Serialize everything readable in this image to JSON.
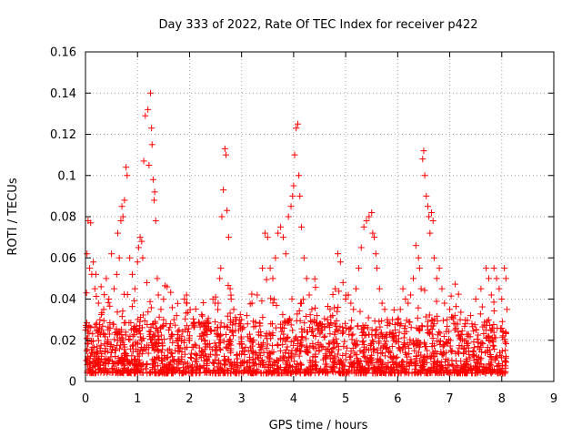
{
  "chart_data": {
    "type": "scatter",
    "title": "Day 333 of 2022, Rate Of TEC Index for receiver p422",
    "xlabel": "GPS time / hours",
    "ylabel": "ROTI / TECUs",
    "xlim": [
      0,
      9
    ],
    "ylim": [
      0,
      0.16
    ],
    "xticks": [
      "0",
      "1",
      "2",
      "3",
      "4",
      "5",
      "6",
      "7",
      "8",
      "9"
    ],
    "yticks": [
      "0",
      "0.02",
      "0.04",
      "0.06",
      "0.08",
      "0.1",
      "0.12",
      "0.14",
      "0.16"
    ],
    "grid": true,
    "marker": "plus",
    "color": "#ff0000",
    "data_extent_x": [
      0,
      8.1
    ],
    "series": [
      {
        "points": [
          [
            0.0,
            0.025
          ],
          [
            0.02,
            0.043
          ],
          [
            0.03,
            0.062
          ],
          [
            0.05,
            0.078
          ],
          [
            0.08,
            0.055
          ],
          [
            0.1,
            0.077
          ],
          [
            0.12,
            0.052
          ],
          [
            0.15,
            0.058
          ],
          [
            0.18,
            0.045
          ],
          [
            0.2,
            0.052
          ],
          [
            0.25,
            0.038
          ],
          [
            0.3,
            0.046
          ],
          [
            0.35,
            0.035
          ],
          [
            0.4,
            0.05
          ],
          [
            0.45,
            0.04
          ],
          [
            0.5,
            0.062
          ],
          [
            0.55,
            0.045
          ],
          [
            0.6,
            0.052
          ],
          [
            0.62,
            0.072
          ],
          [
            0.65,
            0.06
          ],
          [
            0.68,
            0.078
          ],
          [
            0.7,
            0.085
          ],
          [
            0.72,
            0.08
          ],
          [
            0.75,
            0.088
          ],
          [
            0.78,
            0.104
          ],
          [
            0.8,
            0.1
          ],
          [
            0.85,
            0.06
          ],
          [
            0.9,
            0.052
          ],
          [
            0.95,
            0.045
          ],
          [
            1.0,
            0.058
          ],
          [
            1.02,
            0.065
          ],
          [
            1.05,
            0.07
          ],
          [
            1.08,
            0.068
          ],
          [
            1.1,
            0.06
          ],
          [
            1.12,
            0.107
          ],
          [
            1.15,
            0.129
          ],
          [
            1.18,
            0.048
          ],
          [
            1.2,
            0.132
          ],
          [
            1.22,
            0.105
          ],
          [
            1.25,
            0.14
          ],
          [
            1.27,
            0.123
          ],
          [
            1.28,
            0.115
          ],
          [
            1.3,
            0.098
          ],
          [
            1.32,
            0.088
          ],
          [
            1.33,
            0.092
          ],
          [
            1.35,
            0.078
          ],
          [
            1.38,
            0.05
          ],
          [
            1.4,
            0.042
          ],
          [
            1.45,
            0.035
          ],
          [
            1.5,
            0.03
          ],
          [
            1.55,
            0.028
          ],
          [
            1.6,
            0.025
          ],
          [
            1.65,
            0.022
          ],
          [
            1.7,
            0.03
          ],
          [
            1.75,
            0.032
          ],
          [
            1.8,
            0.025
          ],
          [
            1.85,
            0.022
          ],
          [
            1.9,
            0.04
          ],
          [
            1.95,
            0.038
          ],
          [
            2.0,
            0.02
          ],
          [
            2.1,
            0.018
          ],
          [
            2.2,
            0.022
          ],
          [
            2.3,
            0.02
          ],
          [
            2.4,
            0.025
          ],
          [
            2.45,
            0.04
          ],
          [
            2.5,
            0.041
          ],
          [
            2.55,
            0.038
          ],
          [
            2.58,
            0.05
          ],
          [
            2.6,
            0.055
          ],
          [
            2.62,
            0.08
          ],
          [
            2.65,
            0.093
          ],
          [
            2.68,
            0.113
          ],
          [
            2.7,
            0.11
          ],
          [
            2.72,
            0.083
          ],
          [
            2.75,
            0.07
          ],
          [
            2.78,
            0.045
          ],
          [
            2.8,
            0.04
          ],
          [
            2.85,
            0.035
          ],
          [
            2.9,
            0.03
          ],
          [
            2.95,
            0.028
          ],
          [
            3.0,
            0.03
          ],
          [
            3.1,
            0.032
          ],
          [
            3.2,
            0.038
          ],
          [
            3.3,
            0.042
          ],
          [
            3.4,
            0.055
          ],
          [
            3.45,
            0.072
          ],
          [
            3.5,
            0.07
          ],
          [
            3.55,
            0.055
          ],
          [
            3.6,
            0.05
          ],
          [
            3.65,
            0.06
          ],
          [
            3.7,
            0.072
          ],
          [
            3.75,
            0.075
          ],
          [
            3.8,
            0.07
          ],
          [
            3.85,
            0.062
          ],
          [
            3.9,
            0.08
          ],
          [
            3.95,
            0.085
          ],
          [
            3.98,
            0.09
          ],
          [
            4.0,
            0.095
          ],
          [
            4.02,
            0.11
          ],
          [
            4.05,
            0.123
          ],
          [
            4.08,
            0.125
          ],
          [
            4.1,
            0.1
          ],
          [
            4.12,
            0.09
          ],
          [
            4.15,
            0.075
          ],
          [
            4.2,
            0.06
          ],
          [
            4.25,
            0.05
          ],
          [
            4.3,
            0.042
          ],
          [
            4.35,
            0.035
          ],
          [
            4.4,
            0.03
          ],
          [
            4.45,
            0.032
          ],
          [
            4.5,
            0.028
          ],
          [
            4.55,
            0.025
          ],
          [
            4.6,
            0.022
          ],
          [
            4.65,
            0.03
          ],
          [
            4.7,
            0.035
          ],
          [
            4.75,
            0.032
          ],
          [
            4.8,
            0.045
          ],
          [
            4.85,
            0.062
          ],
          [
            4.9,
            0.058
          ],
          [
            4.95,
            0.048
          ],
          [
            5.0,
            0.04
          ],
          [
            5.05,
            0.042
          ],
          [
            5.1,
            0.038
          ],
          [
            5.15,
            0.035
          ],
          [
            5.2,
            0.045
          ],
          [
            5.25,
            0.055
          ],
          [
            5.3,
            0.065
          ],
          [
            5.35,
            0.075
          ],
          [
            5.4,
            0.078
          ],
          [
            5.45,
            0.08
          ],
          [
            5.5,
            0.082
          ],
          [
            5.52,
            0.072
          ],
          [
            5.55,
            0.07
          ],
          [
            5.58,
            0.062
          ],
          [
            5.6,
            0.055
          ],
          [
            5.65,
            0.045
          ],
          [
            5.7,
            0.038
          ],
          [
            5.75,
            0.035
          ],
          [
            5.8,
            0.03
          ],
          [
            5.85,
            0.028
          ],
          [
            5.9,
            0.03
          ],
          [
            5.95,
            0.025
          ],
          [
            6.0,
            0.03
          ],
          [
            6.05,
            0.035
          ],
          [
            6.1,
            0.045
          ],
          [
            6.15,
            0.04
          ],
          [
            6.2,
            0.038
          ],
          [
            6.25,
            0.042
          ],
          [
            6.3,
            0.05
          ],
          [
            6.35,
            0.066
          ],
          [
            6.4,
            0.06
          ],
          [
            6.42,
            0.055
          ],
          [
            6.45,
            0.045
          ],
          [
            6.48,
            0.108
          ],
          [
            6.5,
            0.112
          ],
          [
            6.52,
            0.1
          ],
          [
            6.55,
            0.09
          ],
          [
            6.58,
            0.085
          ],
          [
            6.6,
            0.08
          ],
          [
            6.62,
            0.072
          ],
          [
            6.65,
            0.082
          ],
          [
            6.68,
            0.078
          ],
          [
            6.7,
            0.06
          ],
          [
            6.75,
            0.05
          ],
          [
            6.8,
            0.055
          ],
          [
            6.85,
            0.045
          ],
          [
            6.9,
            0.038
          ],
          [
            6.95,
            0.03
          ],
          [
            7.0,
            0.035
          ],
          [
            7.1,
            0.032
          ],
          [
            7.2,
            0.03
          ],
          [
            7.3,
            0.028
          ],
          [
            7.4,
            0.032
          ],
          [
            7.5,
            0.04
          ],
          [
            7.6,
            0.045
          ],
          [
            7.7,
            0.055
          ],
          [
            7.75,
            0.05
          ],
          [
            7.8,
            0.042
          ],
          [
            7.85,
            0.055
          ],
          [
            7.9,
            0.05
          ],
          [
            7.95,
            0.045
          ],
          [
            8.0,
            0.04
          ],
          [
            8.05,
            0.055
          ],
          [
            8.08,
            0.05
          ],
          [
            8.1,
            0.035
          ]
        ]
      }
    ]
  }
}
